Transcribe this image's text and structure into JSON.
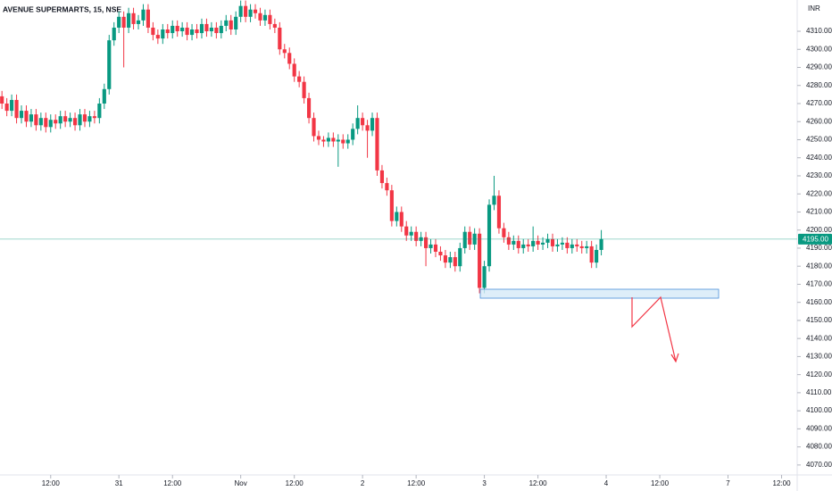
{
  "chart_data": {
    "type": "candlestick",
    "title": "AVENUE SUPERMARTS, 15, NSE",
    "currency": "INR",
    "up_color": "#089981",
    "down_color": "#f23645",
    "x": [
      1,
      2,
      3,
      4,
      5,
      6,
      7,
      8,
      9,
      10,
      11,
      12,
      13,
      14,
      15,
      16,
      17,
      18,
      19,
      20,
      21,
      22,
      23,
      24,
      25,
      26,
      27,
      28,
      29,
      30,
      31,
      32,
      33,
      34,
      35,
      36,
      37,
      38,
      39,
      40,
      41,
      42,
      43,
      44,
      45,
      46,
      47,
      48,
      49,
      50,
      51,
      52,
      53,
      54,
      55,
      56,
      57,
      58,
      59,
      60,
      61,
      62,
      63,
      64,
      65,
      66,
      67,
      68,
      69,
      70,
      71,
      72,
      73,
      74,
      75,
      76,
      77,
      78,
      79,
      80,
      81,
      82,
      83,
      84,
      85,
      86,
      87,
      88,
      89,
      90,
      91,
      92,
      93,
      94,
      95,
      96,
      97,
      98,
      99,
      100,
      101,
      102,
      103,
      104,
      105,
      106,
      107,
      108,
      109,
      110,
      111,
      112,
      113,
      114,
      115,
      116,
      117,
      118,
      119,
      120,
      121,
      122,
      123,
      124
    ],
    "ohlc": [
      [
        4274,
        4277,
        4267,
        4270
      ],
      [
        4270,
        4273,
        4263,
        4266
      ],
      [
        4266,
        4275,
        4263,
        4272
      ],
      [
        4272,
        4275,
        4259,
        4262
      ],
      [
        4262,
        4269,
        4259,
        4266
      ],
      [
        4266,
        4269,
        4257,
        4260
      ],
      [
        4260,
        4267,
        4257,
        4264
      ],
      [
        4264,
        4267,
        4255,
        4258
      ],
      [
        4258,
        4265,
        4255,
        4262
      ],
      [
        4262,
        4265,
        4254,
        4257
      ],
      [
        4257,
        4264,
        4254,
        4261
      ],
      [
        4261,
        4264,
        4256,
        4259
      ],
      [
        4259,
        4266,
        4256,
        4263
      ],
      [
        4263,
        4266,
        4257,
        4260
      ],
      [
        4260,
        4265,
        4257,
        4262
      ],
      [
        4262,
        4265,
        4255,
        4258
      ],
      [
        4258,
        4267,
        4255,
        4264
      ],
      [
        4264,
        4267,
        4257,
        4260
      ],
      [
        4260,
        4266,
        4257,
        4263
      ],
      [
        4263,
        4266,
        4259,
        4262
      ],
      [
        4262,
        4273,
        4259,
        4270
      ],
      [
        4270,
        4281,
        4267,
        4278
      ],
      [
        4278,
        4308,
        4275,
        4305
      ],
      [
        4305,
        4315,
        4302,
        4312
      ],
      [
        4312,
        4321,
        4309,
        4318
      ],
      [
        4318,
        4321,
        4290,
        4312
      ],
      [
        4312,
        4323,
        4309,
        4320
      ],
      [
        4320,
        4323,
        4311,
        4314
      ],
      [
        4314,
        4319,
        4311,
        4316
      ],
      [
        4316,
        4325,
        4313,
        4322
      ],
      [
        4322,
        4325,
        4309,
        4312
      ],
      [
        4312,
        4315,
        4305,
        4308
      ],
      [
        4308,
        4311,
        4303,
        4306
      ],
      [
        4306,
        4314,
        4303,
        4311
      ],
      [
        4311,
        4314,
        4306,
        4309
      ],
      [
        4309,
        4316,
        4306,
        4313
      ],
      [
        4313,
        4316,
        4307,
        4310
      ],
      [
        4310,
        4315,
        4307,
        4312
      ],
      [
        4312,
        4315,
        4305,
        4308
      ],
      [
        4308,
        4314,
        4305,
        4311
      ],
      [
        4311,
        4314,
        4306,
        4309
      ],
      [
        4309,
        4317,
        4306,
        4314
      ],
      [
        4314,
        4317,
        4307,
        4310
      ],
      [
        4310,
        4315,
        4307,
        4312
      ],
      [
        4312,
        4315,
        4306,
        4309
      ],
      [
        4309,
        4316,
        4306,
        4313
      ],
      [
        4313,
        4319,
        4310,
        4316
      ],
      [
        4316,
        4319,
        4308,
        4311
      ],
      [
        4311,
        4321,
        4308,
        4318
      ],
      [
        4318,
        4327,
        4315,
        4324
      ],
      [
        4324,
        4327,
        4315,
        4318
      ],
      [
        4318,
        4325,
        4315,
        4322
      ],
      [
        4322,
        4325,
        4317,
        4320
      ],
      [
        4320,
        4323,
        4313,
        4316
      ],
      [
        4316,
        4322,
        4313,
        4319
      ],
      [
        4319,
        4322,
        4311,
        4314
      ],
      [
        4314,
        4317,
        4309,
        4312
      ],
      [
        4312,
        4315,
        4297,
        4300
      ],
      [
        4300,
        4303,
        4295,
        4298
      ],
      [
        4298,
        4301,
        4289,
        4292
      ],
      [
        4292,
        4295,
        4282,
        4285
      ],
      [
        4285,
        4288,
        4279,
        4282
      ],
      [
        4282,
        4285,
        4270,
        4273
      ],
      [
        4273,
        4276,
        4259,
        4262
      ],
      [
        4262,
        4265,
        4249,
        4252
      ],
      [
        4252,
        4255,
        4247,
        4250
      ],
      [
        4250,
        4252,
        4246,
        4249
      ],
      [
        4249,
        4254,
        4246,
        4251
      ],
      [
        4251,
        4254,
        4246,
        4249
      ],
      [
        4249,
        4253,
        4235,
        4250
      ],
      [
        4250,
        4253,
        4245,
        4248
      ],
      [
        4248,
        4253,
        4245,
        4250
      ],
      [
        4250,
        4259,
        4247,
        4256
      ],
      [
        4256,
        4269,
        4253,
        4262
      ],
      [
        4262,
        4265,
        4255,
        4258
      ],
      [
        4258,
        4261,
        4240,
        4255
      ],
      [
        4255,
        4265,
        4252,
        4262
      ],
      [
        4262,
        4265,
        4230,
        4233
      ],
      [
        4233,
        4236,
        4223,
        4226
      ],
      [
        4226,
        4229,
        4219,
        4222
      ],
      [
        4222,
        4225,
        4202,
        4205
      ],
      [
        4205,
        4213,
        4202,
        4210
      ],
      [
        4210,
        4213,
        4199,
        4202
      ],
      [
        4202,
        4205,
        4194,
        4197
      ],
      [
        4197,
        4202,
        4194,
        4199
      ],
      [
        4199,
        4202,
        4191,
        4194
      ],
      [
        4194,
        4199,
        4191,
        4196
      ],
      [
        4196,
        4199,
        4180,
        4190
      ],
      [
        4190,
        4195,
        4187,
        4192
      ],
      [
        4192,
        4195,
        4185,
        4188
      ],
      [
        4188,
        4191,
        4183,
        4186
      ],
      [
        4186,
        4189,
        4179,
        4182
      ],
      [
        4182,
        4188,
        4179,
        4185
      ],
      [
        4185,
        4188,
        4177,
        4180
      ],
      [
        4180,
        4193,
        4177,
        4190
      ],
      [
        4190,
        4202,
        4187,
        4199
      ],
      [
        4199,
        4202,
        4189,
        4192
      ],
      [
        4192,
        4201,
        4189,
        4198
      ],
      [
        4198,
        4201,
        4165,
        4168
      ],
      [
        4168,
        4183,
        4165,
        4180
      ],
      [
        4180,
        4217,
        4177,
        4214
      ],
      [
        4214,
        4230,
        4211,
        4219
      ],
      [
        4219,
        4222,
        4198,
        4201
      ],
      [
        4201,
        4204,
        4193,
        4196
      ],
      [
        4196,
        4199,
        4189,
        4192
      ],
      [
        4192,
        4197,
        4189,
        4194
      ],
      [
        4194,
        4197,
        4187,
        4190
      ],
      [
        4190,
        4195,
        4187,
        4192
      ],
      [
        4192,
        4195,
        4188,
        4191
      ],
      [
        4191,
        4202,
        4188,
        4194
      ],
      [
        4194,
        4197,
        4189,
        4192
      ],
      [
        4192,
        4196,
        4189,
        4193
      ],
      [
        4193,
        4198,
        4190,
        4195
      ],
      [
        4195,
        4198,
        4188,
        4191
      ],
      [
        4191,
        4195,
        4188,
        4192
      ],
      [
        4192,
        4196,
        4189,
        4193
      ],
      [
        4193,
        4196,
        4187,
        4190
      ],
      [
        4190,
        4195,
        4187,
        4192
      ],
      [
        4192,
        4195,
        4188,
        4191
      ],
      [
        4191,
        4194,
        4187,
        4190
      ],
      [
        4190,
        4194,
        4187,
        4191
      ],
      [
        4191,
        4194,
        4179,
        4182
      ],
      [
        4182,
        4192,
        4179,
        4189
      ],
      [
        4189,
        4200,
        4186,
        4195
      ]
    ],
    "last_price": {
      "value": 4195,
      "label": "4195.00"
    },
    "xlim": [
      0.6,
      164.2
    ],
    "xticks": [
      {
        "value": 11,
        "label": "12:00"
      },
      {
        "value": 25,
        "label": "31"
      },
      {
        "value": 36,
        "label": "12:00"
      },
      {
        "value": 50,
        "label": "Nov"
      },
      {
        "value": 61,
        "label": "12:00"
      },
      {
        "value": 75,
        "label": "2"
      },
      {
        "value": 86,
        "label": "12:00"
      },
      {
        "value": 100,
        "label": "3"
      },
      {
        "value": 111,
        "label": "12:00"
      },
      {
        "value": 125,
        "label": "4"
      },
      {
        "value": 136,
        "label": "12:00"
      },
      {
        "value": 150,
        "label": "7"
      },
      {
        "value": 161,
        "label": "12:00"
      }
    ],
    "ylim": [
      4064.5,
      4327.3
    ],
    "yticks": [
      {
        "value": 4070,
        "label": "4070.00"
      },
      {
        "value": 4080,
        "label": "4080.00"
      },
      {
        "value": 4090,
        "label": "4090.00"
      },
      {
        "value": 4100,
        "label": "4100.00"
      },
      {
        "value": 4110,
        "label": "4110.00"
      },
      {
        "value": 4120,
        "label": "4120.00"
      },
      {
        "value": 4130,
        "label": "4130.00"
      },
      {
        "value": 4140,
        "label": "4140.00"
      },
      {
        "value": 4150,
        "label": "4150.00"
      },
      {
        "value": 4160,
        "label": "4160.00"
      },
      {
        "value": 4170,
        "label": "4170.00"
      },
      {
        "value": 4180,
        "label": "4180.00"
      },
      {
        "value": 4190,
        "label": "4190.00"
      },
      {
        "value": 4200,
        "label": "4200.00"
      },
      {
        "value": 4210,
        "label": "4210.00"
      },
      {
        "value": 4220,
        "label": "4220.00"
      },
      {
        "value": 4230,
        "label": "4230.00"
      },
      {
        "value": 4240,
        "label": "4240.00"
      },
      {
        "value": 4250,
        "label": "4250.00"
      },
      {
        "value": 4260,
        "label": "4260.00"
      },
      {
        "value": 4270,
        "label": "4270.00"
      },
      {
        "value": 4280,
        "label": "4280.00"
      },
      {
        "value": 4290,
        "label": "4290.00"
      },
      {
        "value": 4300,
        "label": "4300.00"
      },
      {
        "value": 4310,
        "label": "4310.00"
      }
    ],
    "grid": false
  }
}
